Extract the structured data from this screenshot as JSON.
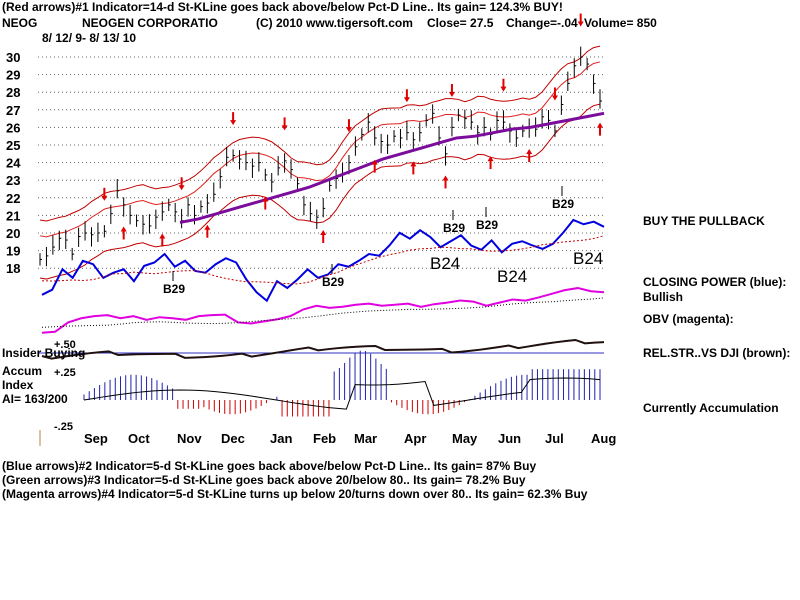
{
  "header": {
    "line1": "(Red arrows)#1 Indicator=14-d St-KLine goes back above/below Pct-D Line.. Its gain= 124.3% BUY!",
    "ticker": "NEOG",
    "company": "NEOGEN CORPORATIO",
    "source": "(C) 2010 www.tigersoft.com",
    "close": "Close=  27.5",
    "change": "Change=-.04",
    "volume": "Volume= 850",
    "daterange": "8/ 12/ 9- 8/ 13/ 10"
  },
  "footer": {
    "line1": "(Blue arrows)#2 Indicator=5-d St-KLine goes back above/below Pct-D Line.. Its gain= 87% Buy",
    "line2": "(Green arrows)#3 Indicator=5-d St-KLine goes back above 20/below 80.. Its gain= 78.2% Buy",
    "line3": "(Magenta arrows)#4 Indicator=5-d St-KLine turns up below 20/turns down over 80.. Its gain= 62.3% Buy"
  },
  "right_labels": {
    "pullback": "BUY THE PULLBACK",
    "cp": "CLOSING POWER (blue):",
    "cp_state": "Bullish",
    "obv": "OBV (magenta):",
    "relstr": "REL.STR..VS DJI (brown):",
    "accum": "Currently Accumulation"
  },
  "left_labels": {
    "insider": "Insider Buying",
    "accum1": "Accum",
    "accum2": "Index",
    "ai": "AI= 163/200",
    "p50": "+.50",
    "p25": "+.25",
    "m25": "-.25"
  },
  "chart_data": {
    "type": "line",
    "title": "NEOG NEOGEN CORPORATIO",
    "x_ticks": [
      "Sep",
      "Oct",
      "Nov",
      "Dec",
      "Jan",
      "Feb",
      "Mar",
      "Apr",
      "May",
      "Jun",
      "Jul",
      "Aug"
    ],
    "ylim": [
      18,
      30.6
    ],
    "y_ticks": [
      "30",
      "29",
      "28",
      "27",
      "26",
      "25",
      "24",
      "23",
      "22",
      "21",
      "20",
      "19",
      "18"
    ],
    "series": [
      {
        "color": "#000000",
        "values": [
          18.5,
          18.7,
          19.2,
          19.7,
          19.6,
          18.8,
          19.8,
          20.0,
          19.9,
          20.0,
          20.1,
          21.1,
          22.4,
          21.6,
          21.0,
          20.7,
          20.5,
          20.4,
          20.9,
          21.2,
          21.6,
          21.2,
          20.7,
          21.6,
          21.0,
          21.5,
          21.7,
          22.2,
          23.2,
          24.3,
          24.4,
          24.2,
          24.0,
          23.8,
          24.0,
          23.3,
          22.9,
          23.7,
          24.1,
          23.6,
          22.8,
          21.6,
          21.1,
          20.9,
          21.4,
          22.7,
          23.1,
          23.3,
          24.0,
          24.9,
          25.6,
          26.3,
          25.4,
          25.2,
          25.0,
          25.5,
          25.4,
          25.7,
          25.3,
          25.7,
          26.4,
          26.8,
          25.4,
          24.5,
          26.0,
          26.7,
          26.5,
          26.3,
          25.7,
          26.0,
          25.6,
          26.4,
          26.3,
          25.8,
          25.4,
          25.8,
          26.0,
          25.9,
          26.6,
          26.4,
          25.8,
          27.3,
          28.5,
          29.5,
          30.0,
          29.6,
          28.5,
          27.5
        ]
      },
      {
        "color": "#7b0c9c",
        "values": [
          20.6,
          20.8,
          21.1,
          21.4,
          21.7,
          22.0,
          22.3,
          22.6,
          23.0,
          23.4,
          23.8,
          24.2,
          24.5,
          24.8,
          25.1,
          25.4,
          25.5,
          25.7,
          25.9,
          26.0,
          26.2,
          26.4,
          26.6,
          26.8
        ]
      },
      {
        "color": "#0000e0",
        "values": [
          0.12,
          0.18,
          0.42,
          0.32,
          0.52,
          0.48,
          0.32,
          0.38,
          0.42,
          0.28,
          0.46,
          0.5,
          0.6,
          0.45,
          0.52,
          0.4,
          0.38,
          0.48,
          0.55,
          0.5,
          0.3,
          0.15,
          0.05,
          0.28,
          0.2,
          0.3,
          0.42,
          0.32,
          0.36,
          0.48,
          0.45,
          0.52,
          0.6,
          0.58,
          0.7,
          0.85,
          0.78,
          0.88,
          0.8,
          0.68,
          0.75,
          0.82,
          0.7,
          0.65,
          0.76,
          0.62,
          0.72,
          0.75,
          0.7,
          0.66,
          0.72,
          0.85,
          1.0,
          0.95,
          0.98,
          0.92
        ]
      },
      {
        "color": "#e000e0",
        "values": [
          0.1,
          0.12,
          0.3,
          0.38,
          0.42,
          0.44,
          0.38,
          0.42,
          0.35,
          0.4,
          0.38,
          0.35,
          0.42,
          0.44,
          0.45,
          0.3,
          0.28,
          0.32,
          0.36,
          0.42,
          0.55,
          0.62,
          0.58,
          0.6,
          0.64,
          0.66,
          0.62,
          0.64,
          0.66,
          0.6,
          0.65,
          0.68,
          0.72,
          0.7,
          0.62,
          0.68,
          0.74,
          0.72,
          0.78,
          0.85,
          0.92,
          0.96,
          0.9,
          0.88
        ]
      }
    ],
    "annotations": [
      "B29",
      "B29",
      "B24",
      "B29",
      "B29",
      "B24",
      "B29",
      "B24",
      "B29"
    ],
    "big_labels": [
      "B24",
      "B24",
      "B24"
    ]
  }
}
